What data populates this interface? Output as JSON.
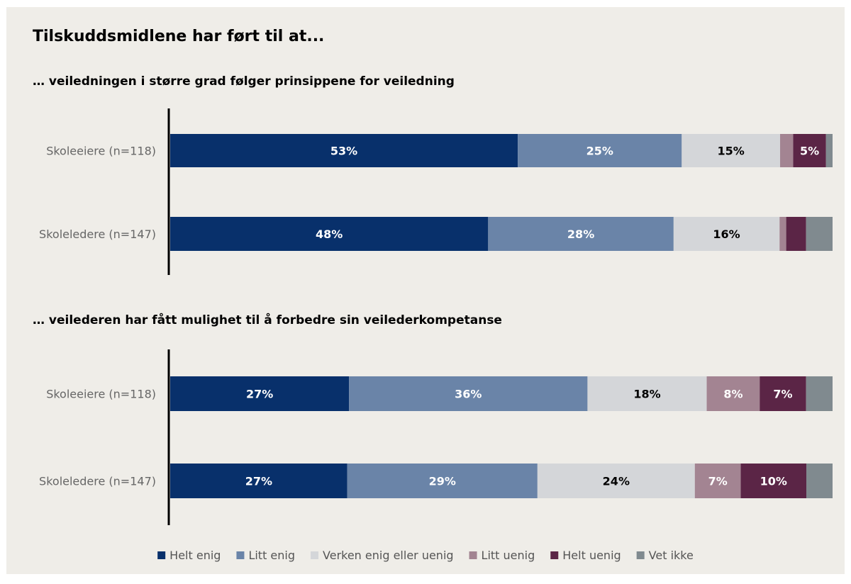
{
  "title": "Tilskuddsmidlene har ført til at...",
  "colors": {
    "background": "#efede8",
    "helt_enig": "#08306b",
    "litt_enig": "#6a84a8",
    "verken": "#d4d6d9",
    "litt_uenig": "#a38492",
    "helt_uenig": "#5b2546",
    "vet_ikke": "#808a8f"
  },
  "chart_data": {
    "type": "bar",
    "orientation": "horizontal",
    "stacked": true,
    "percent": true,
    "legend": {
      "position": "bottom",
      "items": [
        "Helt enig",
        "Litt enig",
        "Verken enig eller uenig",
        "Litt uenig",
        "Helt uenig",
        "Vet ikke"
      ]
    },
    "panels": [
      {
        "subtitle": "… veiledningen i større grad følger prinsippene for veiledning",
        "categories": [
          "Skoleeiere (n=118)",
          "Skoleledere (n=147)"
        ],
        "series": [
          {
            "name": "Helt enig",
            "values": [
              53,
              48
            ],
            "labels": [
              "53%",
              "48%"
            ]
          },
          {
            "name": "Litt enig",
            "values": [
              25,
              28
            ],
            "labels": [
              "25%",
              "28%"
            ]
          },
          {
            "name": "Verken enig eller uenig",
            "values": [
              15,
              16
            ],
            "labels": [
              "15%",
              "16%"
            ]
          },
          {
            "name": "Litt uenig",
            "values": [
              2,
              1
            ],
            "labels": [
              "",
              ""
            ]
          },
          {
            "name": "Helt uenig",
            "values": [
              5,
              3
            ],
            "labels": [
              "5%",
              ""
            ]
          },
          {
            "name": "Vet ikke",
            "values": [
              1,
              4
            ],
            "labels": [
              "",
              ""
            ]
          }
        ]
      },
      {
        "subtitle": "… veilederen har fått mulighet til å forbedre sin veilederkompetanse",
        "categories": [
          "Skoleeiere (n=118)",
          "Skoleledere (n=147)"
        ],
        "series": [
          {
            "name": "Helt enig",
            "values": [
              27,
              27
            ],
            "labels": [
              "27%",
              "27%"
            ]
          },
          {
            "name": "Litt enig",
            "values": [
              36,
              29
            ],
            "labels": [
              "36%",
              "29%"
            ]
          },
          {
            "name": "Verken enig eller uenig",
            "values": [
              18,
              24
            ],
            "labels": [
              "18%",
              "24%"
            ]
          },
          {
            "name": "Litt uenig",
            "values": [
              8,
              7
            ],
            "labels": [
              "8%",
              "7%"
            ]
          },
          {
            "name": "Helt uenig",
            "values": [
              7,
              10
            ],
            "labels": [
              "7%",
              "10%"
            ]
          },
          {
            "name": "Vet ikke",
            "values": [
              4,
              4
            ],
            "labels": [
              "",
              ""
            ]
          }
        ]
      }
    ]
  }
}
